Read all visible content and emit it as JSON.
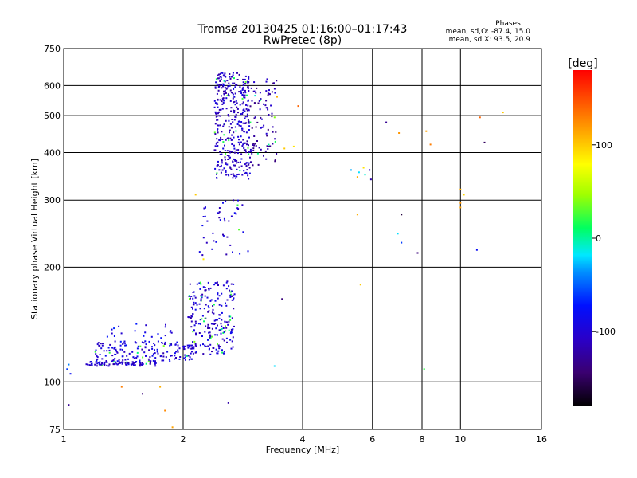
{
  "chart_data": {
    "type": "scatter",
    "title": "Tromsø 20130425 01:16:00–01:17:43",
    "subtitle": "RwPretec (8p)",
    "xlabel": "Frequency [MHz]",
    "ylabel": "Stationary phase Virtual Height [km]",
    "x_scale": "log",
    "y_scale": "log",
    "xlim": [
      1,
      16
    ],
    "ylim": [
      75,
      750
    ],
    "x_ticks": [
      1,
      2,
      4,
      6,
      8,
      10,
      16
    ],
    "y_ticks": [
      75,
      100,
      200,
      300,
      400,
      500,
      600,
      750
    ],
    "grid": true,
    "phase_info": {
      "heading": "Phases",
      "line1": "mean, sd,O: -87.4, 15.0",
      "line2": "mean, sd,X:  93.5, 20.9"
    },
    "colorbar": {
      "label": "[deg]",
      "ticks": [
        100,
        0,
        -100
      ],
      "range": [
        -180,
        180
      ]
    },
    "clusters": [
      {
        "name": "e_low",
        "x_range": [
          1.12,
          1.72
        ],
        "y_range": [
          110,
          113
        ],
        "n": 85,
        "phase": -105
      },
      {
        "name": "e_trace",
        "x_range": [
          1.2,
          2.15
        ],
        "y_range": [
          113,
          128
        ],
        "n": 160,
        "phase": -98
      },
      {
        "name": "e_cusp",
        "x_range": [
          2.05,
          2.7
        ],
        "y_range": [
          118,
          185
        ],
        "n": 230,
        "phase": -102
      },
      {
        "name": "e_sparse",
        "x_range": [
          1.25,
          1.95
        ],
        "y_range": [
          123,
          142
        ],
        "n": 30,
        "phase": -85
      },
      {
        "name": "f_mid",
        "x_range": [
          2.2,
          2.95
        ],
        "y_range": [
          215,
          300
        ],
        "n": 45,
        "phase": -100
      },
      {
        "name": "f_main",
        "x_range": [
          2.4,
          2.95
        ],
        "y_range": [
          340,
          650
        ],
        "n": 380,
        "phase": -108
      },
      {
        "name": "f_x",
        "x_range": [
          2.95,
          3.45
        ],
        "y_range": [
          370,
          640
        ],
        "n": 90,
        "phase": -120
      }
    ],
    "points": [
      {
        "x": 1.02,
        "y": 108,
        "phase": -60
      },
      {
        "x": 1.03,
        "y": 111,
        "phase": -40
      },
      {
        "x": 1.04,
        "y": 105,
        "phase": -80
      },
      {
        "x": 1.03,
        "y": 87,
        "phase": -130
      },
      {
        "x": 1.4,
        "y": 97,
        "phase": 130
      },
      {
        "x": 1.58,
        "y": 93,
        "phase": -140
      },
      {
        "x": 1.75,
        "y": 97,
        "phase": 110
      },
      {
        "x": 1.8,
        "y": 84,
        "phase": 125
      },
      {
        "x": 1.88,
        "y": 76,
        "phase": 115
      },
      {
        "x": 2.6,
        "y": 88,
        "phase": -120
      },
      {
        "x": 3.4,
        "y": 110,
        "phase": -20
      },
      {
        "x": 3.55,
        "y": 165,
        "phase": -140
      },
      {
        "x": 3.9,
        "y": 530,
        "phase": 140
      },
      {
        "x": 3.8,
        "y": 415,
        "phase": 90
      },
      {
        "x": 3.6,
        "y": 410,
        "phase": 100
      },
      {
        "x": 3.45,
        "y": 560,
        "phase": 110
      },
      {
        "x": 3.4,
        "y": 495,
        "phase": 40
      },
      {
        "x": 2.15,
        "y": 310,
        "phase": 100
      },
      {
        "x": 2.25,
        "y": 210,
        "phase": 90
      },
      {
        "x": 5.3,
        "y": 360,
        "phase": -30
      },
      {
        "x": 5.5,
        "y": 345,
        "phase": 110
      },
      {
        "x": 5.55,
        "y": 355,
        "phase": -20
      },
      {
        "x": 5.7,
        "y": 365,
        "phase": 90
      },
      {
        "x": 5.75,
        "y": 350,
        "phase": -10
      },
      {
        "x": 5.9,
        "y": 360,
        "phase": -110
      },
      {
        "x": 5.95,
        "y": 340,
        "phase": -120
      },
      {
        "x": 5.5,
        "y": 275,
        "phase": 110
      },
      {
        "x": 5.6,
        "y": 180,
        "phase": 100
      },
      {
        "x": 6.5,
        "y": 480,
        "phase": -130
      },
      {
        "x": 7.0,
        "y": 450,
        "phase": 120
      },
      {
        "x": 7.1,
        "y": 275,
        "phase": -160
      },
      {
        "x": 6.95,
        "y": 245,
        "phase": -20
      },
      {
        "x": 7.1,
        "y": 232,
        "phase": -60
      },
      {
        "x": 7.8,
        "y": 218,
        "phase": -140
      },
      {
        "x": 8.2,
        "y": 455,
        "phase": 115
      },
      {
        "x": 8.4,
        "y": 420,
        "phase": 130
      },
      {
        "x": 8.1,
        "y": 108,
        "phase": 20
      },
      {
        "x": 10.0,
        "y": 320,
        "phase": 110
      },
      {
        "x": 10.0,
        "y": 295,
        "phase": 120
      },
      {
        "x": 10.0,
        "y": 287,
        "phase": 115
      },
      {
        "x": 10.2,
        "y": 310,
        "phase": 95
      },
      {
        "x": 11.2,
        "y": 495,
        "phase": 140
      },
      {
        "x": 11.5,
        "y": 425,
        "phase": -150
      },
      {
        "x": 11.0,
        "y": 222,
        "phase": -80
      },
      {
        "x": 12.8,
        "y": 510,
        "phase": 100
      }
    ]
  }
}
